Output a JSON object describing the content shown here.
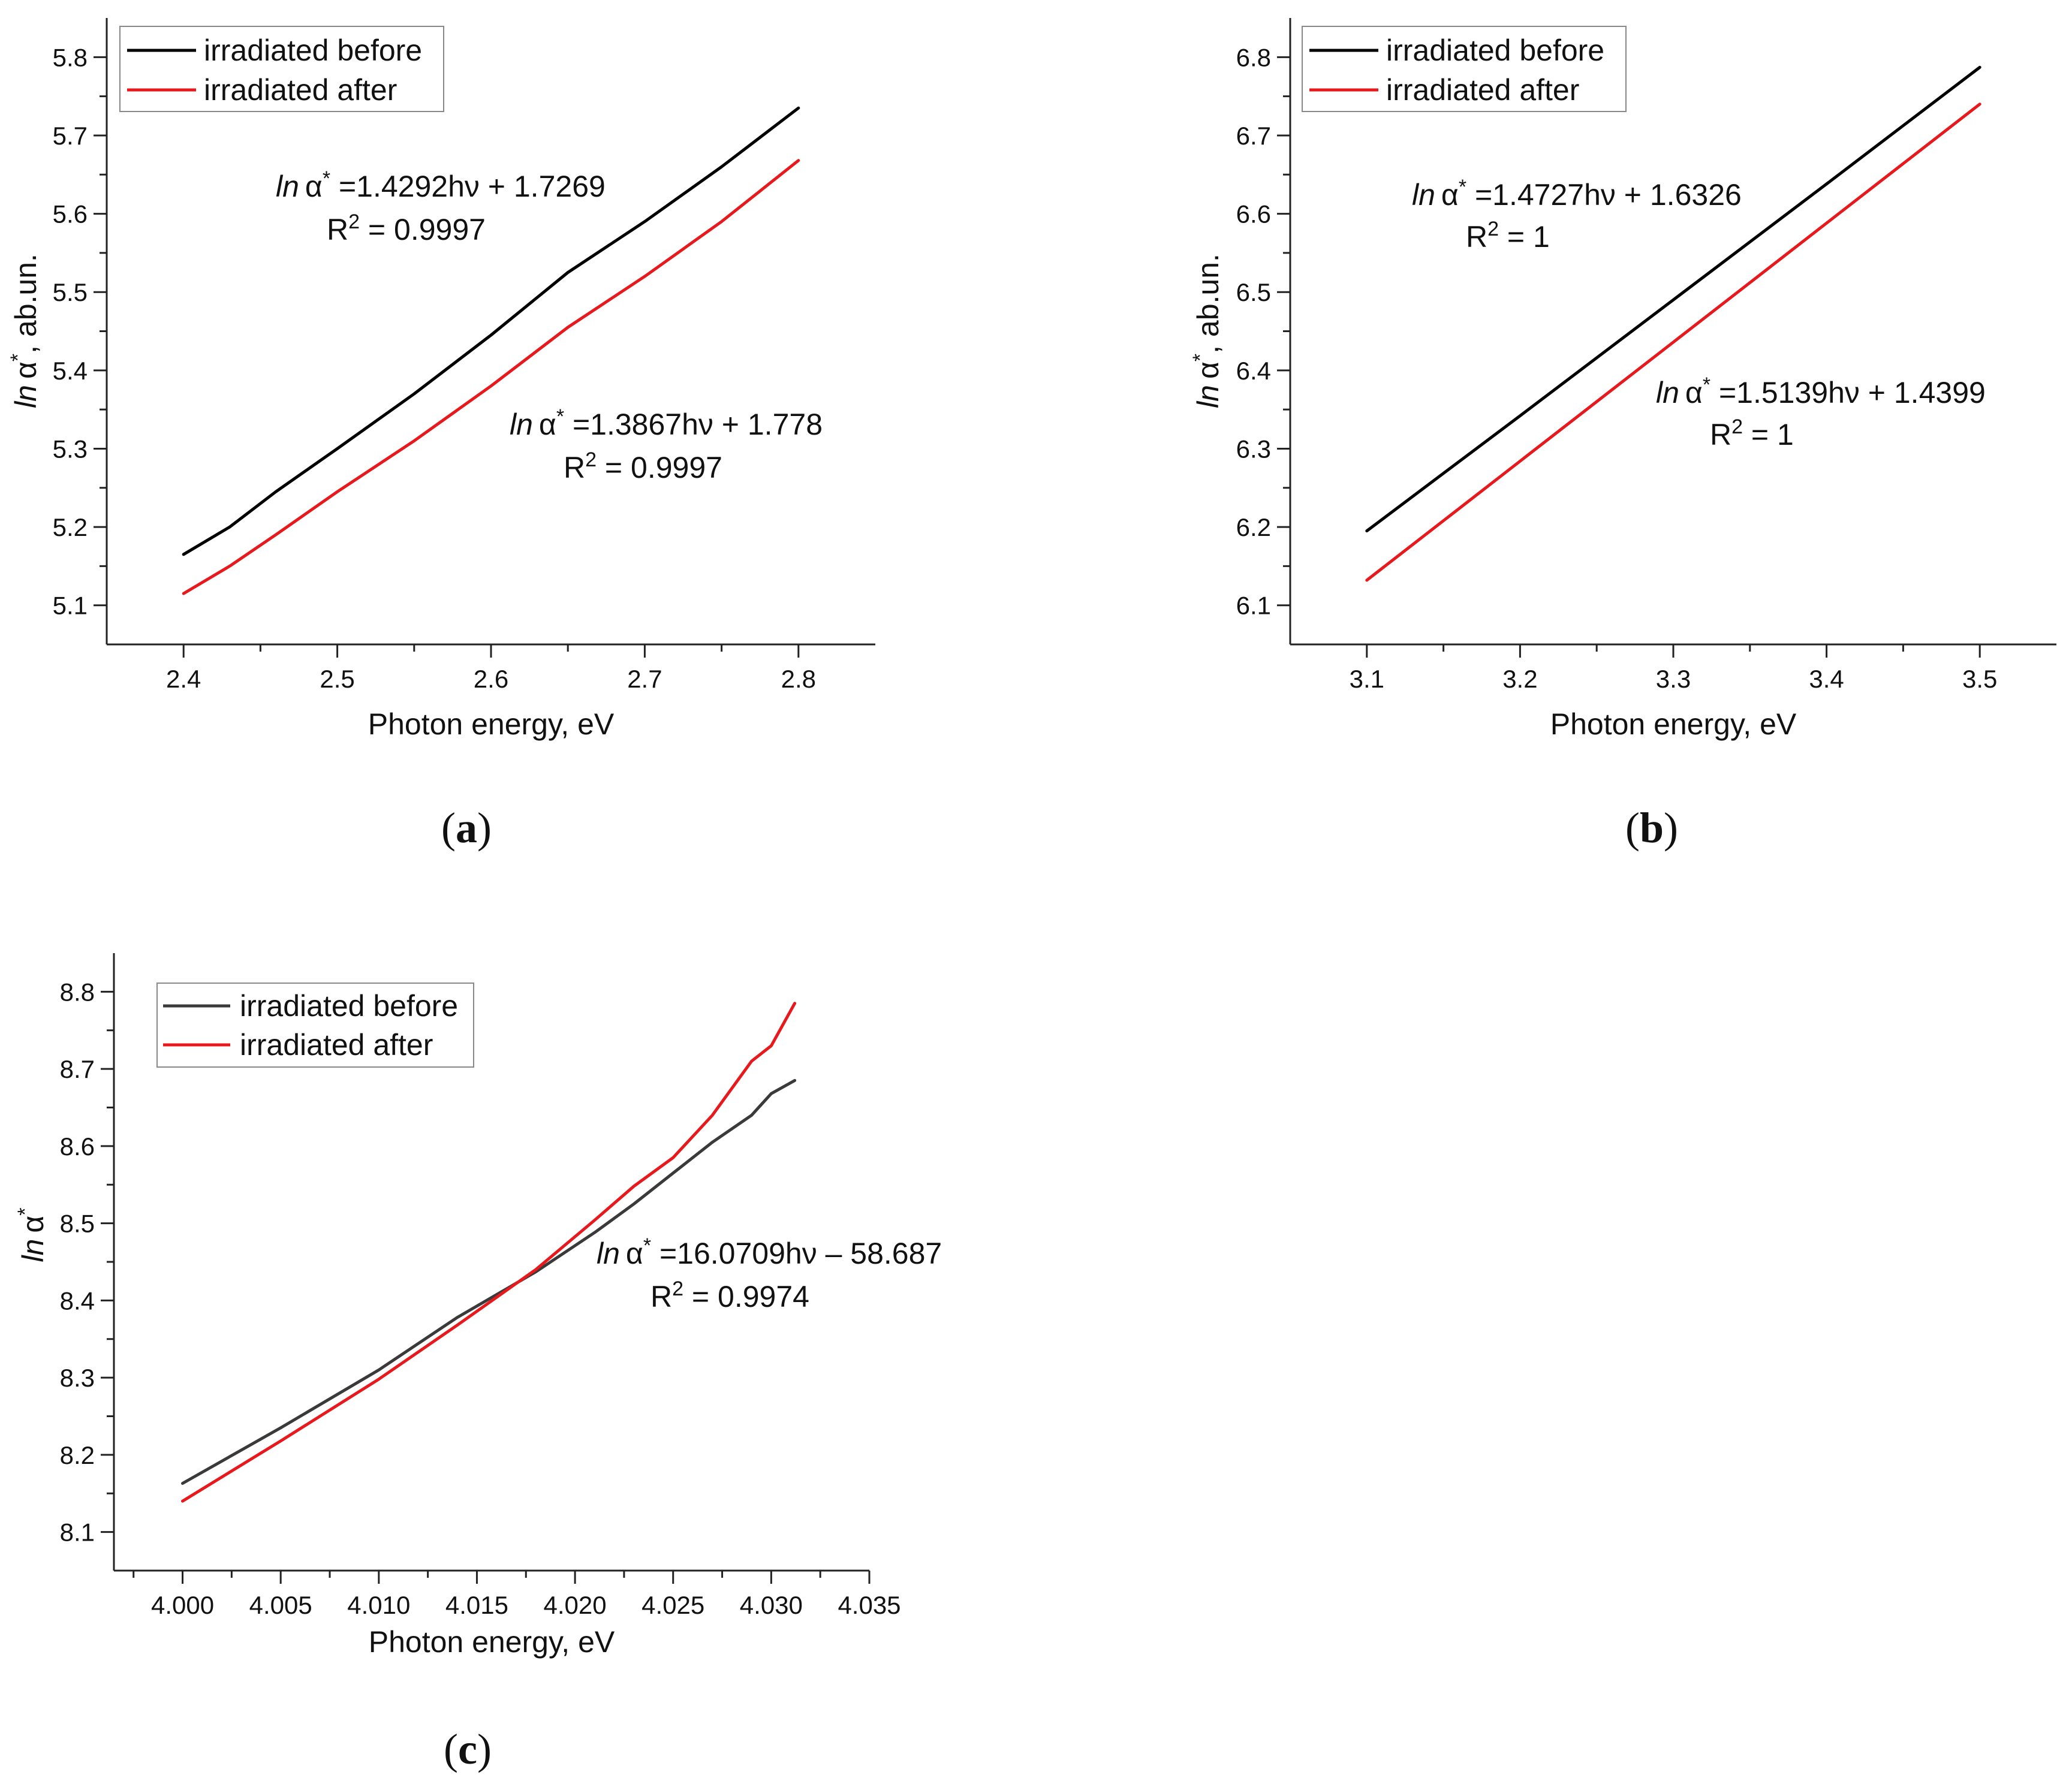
{
  "chart_data": [
    {
      "type": "line",
      "panel": "a",
      "caption": "a",
      "xlabel": "Photon energy, eV",
      "ylabel": "ln α*, ab.un.",
      "ylabel_prefix": "ln",
      "ylabel_symbol": "α",
      "ylabel_sup": "*",
      "ylabel_suffix": ", ab.un.",
      "xlim": [
        2.35,
        2.85
      ],
      "ylim": [
        5.05,
        5.85
      ],
      "xticks": [
        2.4,
        2.5,
        2.6,
        2.7,
        2.8
      ],
      "xtick_labels": [
        "2.4",
        "2.5",
        "2.6",
        "2.7",
        "2.8"
      ],
      "yticks": [
        5.1,
        5.2,
        5.3,
        5.4,
        5.5,
        5.6,
        5.7,
        5.8
      ],
      "ytick_labels": [
        "5.1",
        "5.2",
        "5.3",
        "5.4",
        "5.5",
        "5.6",
        "5.7",
        "5.8"
      ],
      "legend": {
        "position": "top-left",
        "entries": [
          "irradiated before",
          "irradiated after"
        ]
      },
      "series": [
        {
          "name": "irradiated before",
          "color": "#000000",
          "x": [
            2.4,
            2.43,
            2.46,
            2.5,
            2.55,
            2.6,
            2.65,
            2.7,
            2.75,
            2.8
          ],
          "y": [
            5.165,
            5.2,
            5.245,
            5.3,
            5.37,
            5.445,
            5.525,
            5.59,
            5.66,
            5.735
          ]
        },
        {
          "name": "irradiated after",
          "color": "#e8191c",
          "x": [
            2.4,
            2.43,
            2.46,
            2.5,
            2.55,
            2.6,
            2.65,
            2.7,
            2.75,
            2.8
          ],
          "y": [
            5.115,
            5.15,
            5.19,
            5.245,
            5.31,
            5.38,
            5.455,
            5.52,
            5.59,
            5.668
          ]
        }
      ],
      "annotations": [
        {
          "prefix": "ln",
          "symbol": "α",
          "sup": "*",
          "text": " =1.4292hν + 1.7269",
          "r2_label": "R",
          "r2_sup": "2",
          "r2_text": " = 0.9997"
        },
        {
          "prefix": "ln",
          "symbol": "α",
          "sup": "*",
          "text": " =1.3867hν + 1.778",
          "r2_label": "R",
          "r2_sup": "2",
          "r2_text": " = 0.9997"
        }
      ]
    },
    {
      "type": "line",
      "panel": "b",
      "caption": "b",
      "xlabel": "Photon energy, eV",
      "ylabel": "ln α*, ab.un.",
      "ylabel_prefix": "ln",
      "ylabel_symbol": "α",
      "ylabel_sup": "*",
      "ylabel_suffix": ", ab.un.",
      "xlim": [
        3.05,
        3.55
      ],
      "ylim": [
        6.05,
        6.85
      ],
      "xticks": [
        3.1,
        3.2,
        3.3,
        3.4,
        3.5
      ],
      "xtick_labels": [
        "3.1",
        "3.2",
        "3.3",
        "3.4",
        "3.5"
      ],
      "yticks": [
        6.1,
        6.2,
        6.3,
        6.4,
        6.5,
        6.6,
        6.7,
        6.8
      ],
      "ytick_labels": [
        "6.1",
        "6.2",
        "6.3",
        "6.4",
        "6.5",
        "6.6",
        "6.7",
        "6.8"
      ],
      "legend": {
        "position": "top-left",
        "entries": [
          "irradiated before",
          "irradiated after"
        ]
      },
      "series": [
        {
          "name": "irradiated before",
          "color": "#000000",
          "x": [
            3.1,
            3.2,
            3.3,
            3.4,
            3.5
          ],
          "y": [
            6.195,
            6.342,
            6.49,
            6.638,
            6.787
          ]
        },
        {
          "name": "irradiated after",
          "color": "#e8191c",
          "x": [
            3.1,
            3.2,
            3.3,
            3.4,
            3.5
          ],
          "y": [
            6.132,
            6.284,
            6.436,
            6.588,
            6.74
          ]
        }
      ],
      "annotations": [
        {
          "prefix": "ln",
          "symbol": "α",
          "sup": "*",
          "text": " =1.4727hν + 1.6326",
          "r2_label": "R",
          "r2_sup": "2",
          "r2_text": " = 1"
        },
        {
          "prefix": "ln",
          "symbol": "α",
          "sup": "*",
          "text": " =1.5139hν + 1.4399",
          "r2_label": "R",
          "r2_sup": "2",
          "r2_text": " = 1"
        }
      ]
    },
    {
      "type": "line",
      "panel": "c",
      "caption": "c",
      "xlabel": "Photon energy, eV",
      "ylabel": "ln α*",
      "ylabel_prefix": "ln",
      "ylabel_symbol": "α",
      "ylabel_sup": "*",
      "ylabel_suffix": "",
      "xlim": [
        3.9965,
        4.035
      ],
      "ylim": [
        8.05,
        8.85
      ],
      "xticks": [
        4.0,
        4.005,
        4.01,
        4.015,
        4.02,
        4.025,
        4.03,
        4.035
      ],
      "xtick_labels": [
        "4.000",
        "4.005",
        "4.010",
        "4.015",
        "4.020",
        "4.025",
        "4.030",
        "4.035"
      ],
      "yticks": [
        8.1,
        8.2,
        8.3,
        8.4,
        8.5,
        8.6,
        8.7,
        8.8
      ],
      "ytick_labels": [
        "8.1",
        "8.2",
        "8.3",
        "8.4",
        "8.5",
        "8.6",
        "8.7",
        "8.8"
      ],
      "legend": {
        "position": "top-left",
        "entries": [
          "irradiated before",
          "irradiated after"
        ]
      },
      "series": [
        {
          "name": "irradiated before",
          "color": "#3a3a3a",
          "x": [
            4.0,
            4.005,
            4.01,
            4.014,
            4.018,
            4.021,
            4.023,
            4.025,
            4.027,
            4.029,
            4.03,
            4.0312
          ],
          "y": [
            8.163,
            8.235,
            8.31,
            8.378,
            8.437,
            8.488,
            8.525,
            8.565,
            8.605,
            8.64,
            8.668,
            8.685
          ]
        },
        {
          "name": "irradiated after",
          "color": "#e8191c",
          "x": [
            4.0,
            4.005,
            4.01,
            4.014,
            4.018,
            4.021,
            4.023,
            4.025,
            4.027,
            4.029,
            4.03,
            4.0312
          ],
          "y": [
            8.14,
            8.218,
            8.298,
            8.368,
            8.44,
            8.504,
            8.548,
            8.585,
            8.64,
            8.71,
            8.73,
            8.785
          ]
        }
      ],
      "annotations": [
        {
          "prefix": "ln",
          "symbol": "α",
          "sup": "*",
          "text": " =16.0709hν – 58.687",
          "r2_label": "R",
          "r2_sup": "2",
          "r2_text": " = 0.9974"
        }
      ]
    }
  ]
}
